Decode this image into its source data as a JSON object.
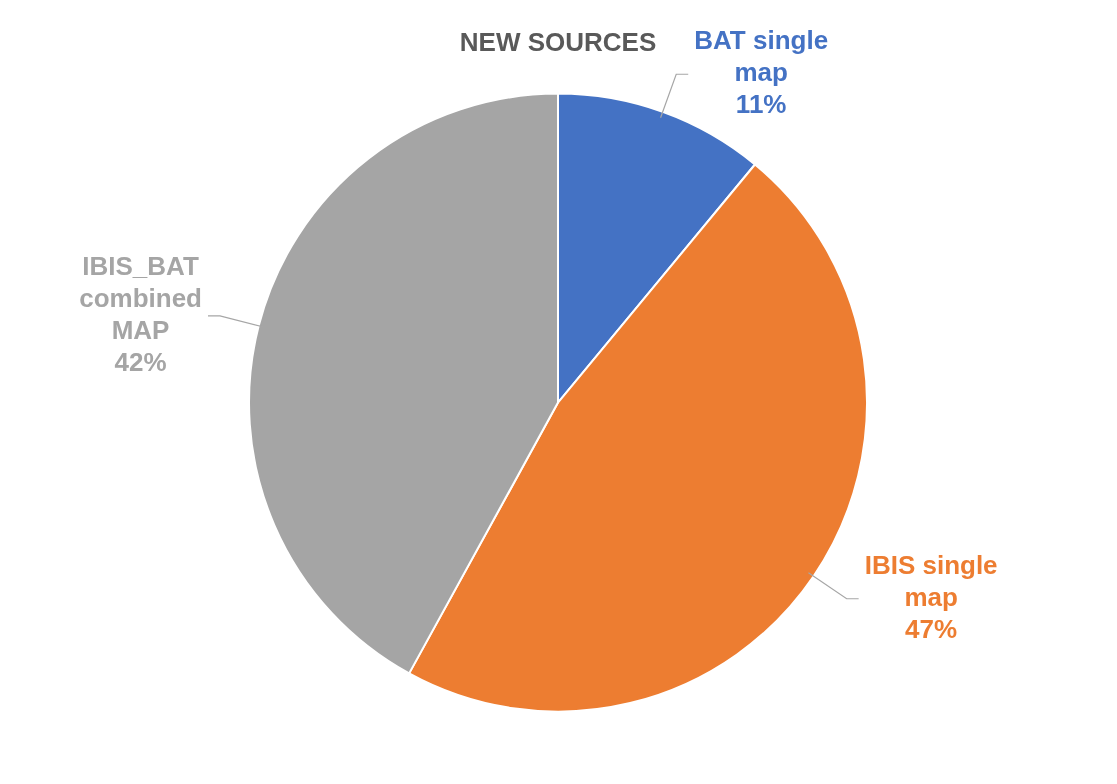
{
  "chart_data": {
    "type": "pie",
    "title": "NEW SOURCES",
    "categories": [
      "BAT single map",
      "IBIS single map",
      "IBIS_BAT combined MAP"
    ],
    "values": [
      11,
      47,
      42
    ],
    "colors": [
      "#4472c4",
      "#ed7d31",
      "#a5a5a5"
    ],
    "value_labels": [
      "11%",
      "47%",
      "42%"
    ],
    "legend": false
  }
}
